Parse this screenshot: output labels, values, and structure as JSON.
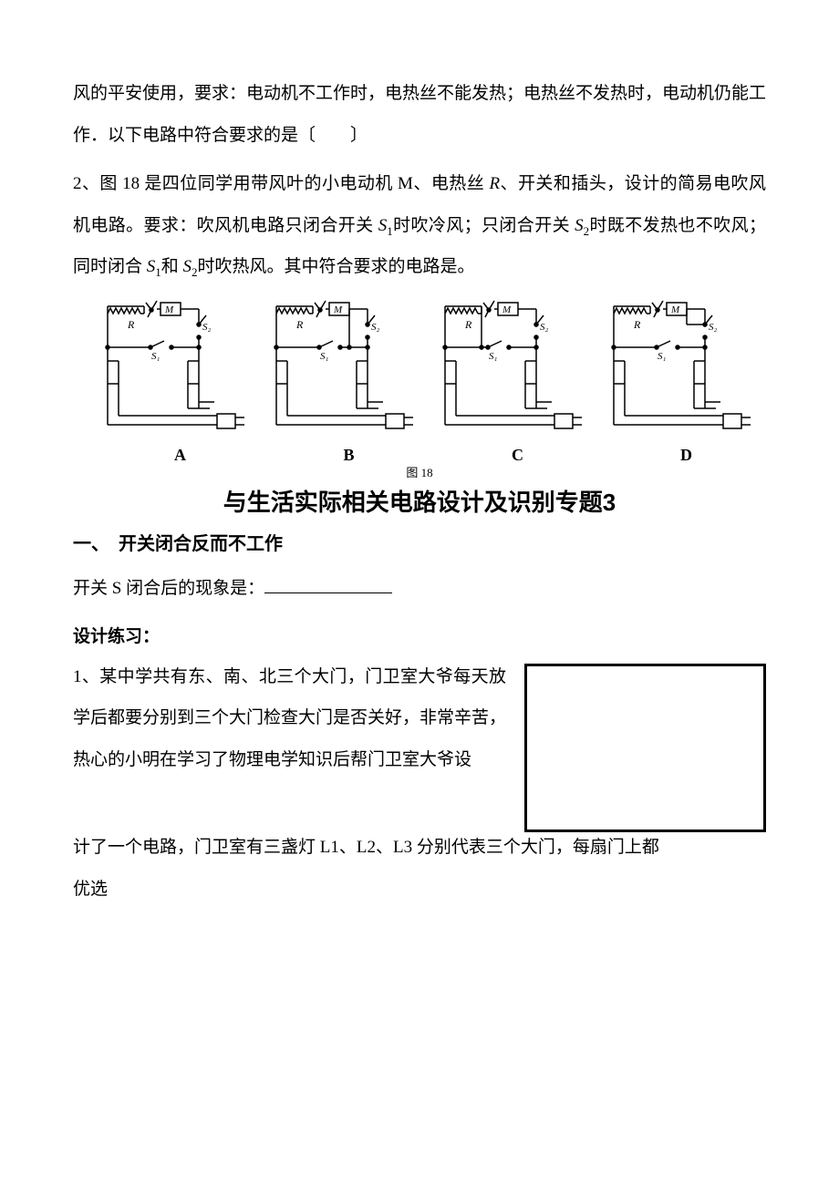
{
  "dots": ". .",
  "para1": "风的平安使用，要求：电动机不工作时，电热丝不能发热；电热丝不发热时，电动机仍能工作．以下电路中符合要求的是〔　　〕",
  "para2_pre": "2、图 18 是四位同学用带风叶的小电动机 M、电热丝 ",
  "para2_r": "R",
  "para2_mid1": "、开关和插头，设计的简易电吹风机电路。要求：吹风机电路只闭合开关 ",
  "para2_s1a": "S",
  "para2_sub1a": "1",
  "para2_mid2": "时吹冷风；只闭合开关 ",
  "para2_s2": "S",
  "para2_sub2": "2",
  "para2_mid3": "时既不发热也不吹风；同时闭合 ",
  "para2_s1b": "S",
  "para2_sub1b": "1",
  "para2_and": "和 ",
  "para2_s2b": "S",
  "para2_sub2b": "2",
  "para2_end": "时吹热风。其中符合要求的电路是。",
  "diagrams": {
    "labels": [
      "A",
      "B",
      "C",
      "D"
    ],
    "fig_caption": "图 18",
    "svg": {
      "width": 175,
      "height": 155,
      "stroke": "#000000",
      "stroke_width": 1.5,
      "R_label": "R",
      "M_label": "M",
      "S1_label": "S₁",
      "S2_label": "S₂"
    }
  },
  "section_title": "与生活实际相关电路设计及识别专题3",
  "subsection": "一、　开关闭合反而不工作",
  "phenomenon_label": "开关 S 闭合后的现象是：",
  "exercise_label": "设计练习：",
  "exercise1_col": "1、某中学共有东、南、北三个大门，门卫室大爷每天放学后都要分别到三个大门检查大门是否关好，非常辛苦，热心的小明在学习了物理电学知识后帮门卫室大爷设",
  "exercise1_cont": "计了一个电路，门卫室有三盏灯 L1、L2、L3 分别代表三个大门，每扇门上都",
  "bottom": "优选",
  "colors": {
    "text": "#000000",
    "bg": "#ffffff"
  }
}
